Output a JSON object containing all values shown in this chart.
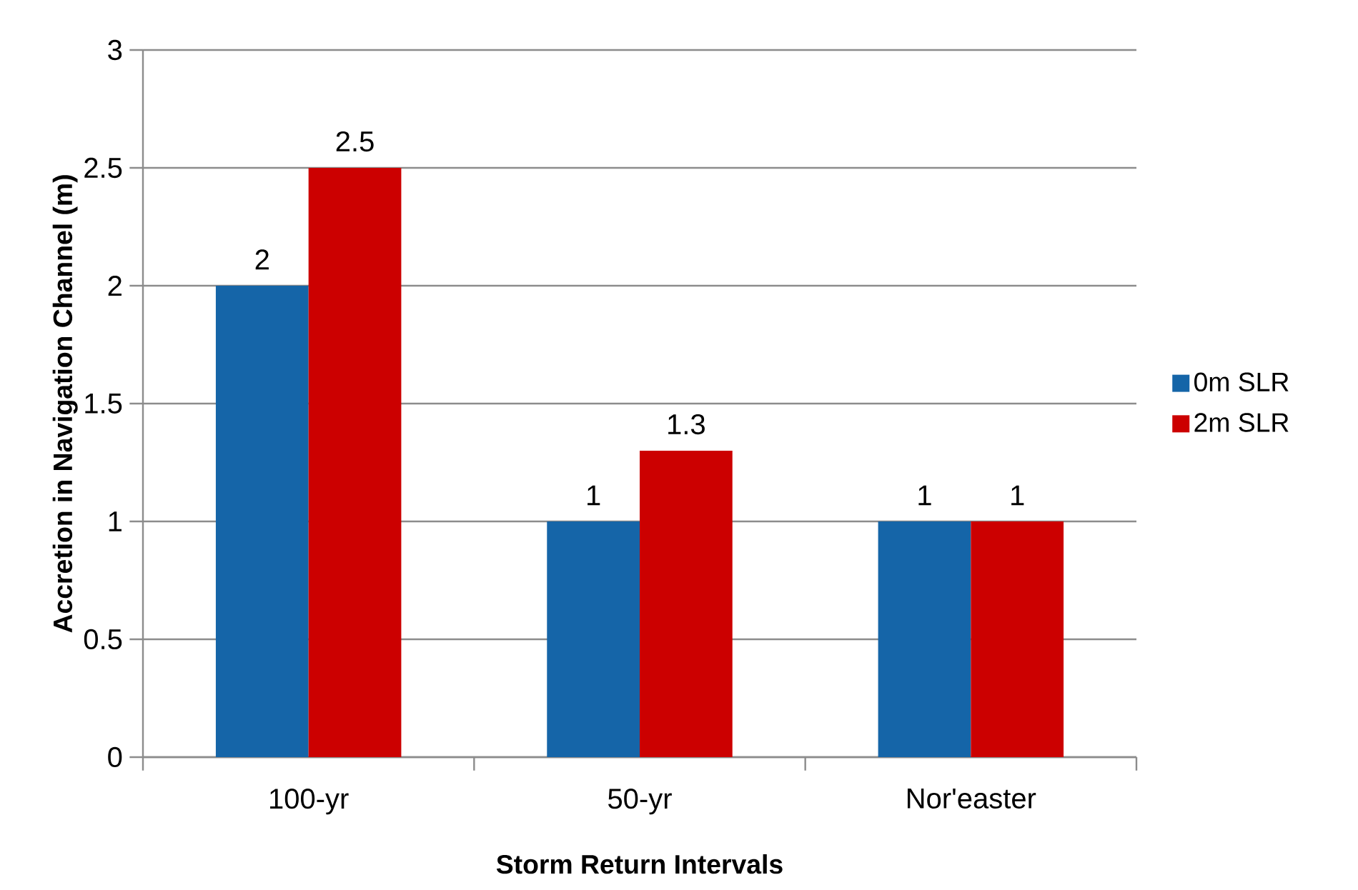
{
  "chart_data": {
    "type": "bar",
    "xlabel": "Storm Return Intervals",
    "ylabel": "Accretion in Navigation Channel (m)",
    "categories": [
      "100-yr",
      "50-yr",
      "Nor'easter"
    ],
    "series": [
      {
        "name": "0m SLR",
        "color": "#1565a8",
        "values": [
          2,
          1,
          1
        ]
      },
      {
        "name": "2m SLR",
        "color": "#cc0000",
        "values": [
          2.5,
          1.3,
          1
        ]
      }
    ],
    "ylim": [
      0,
      3
    ],
    "yticks": [
      0,
      0.5,
      1,
      1.5,
      2,
      2.5,
      3
    ],
    "grid": "y",
    "legend": "right",
    "data_labels": true
  }
}
